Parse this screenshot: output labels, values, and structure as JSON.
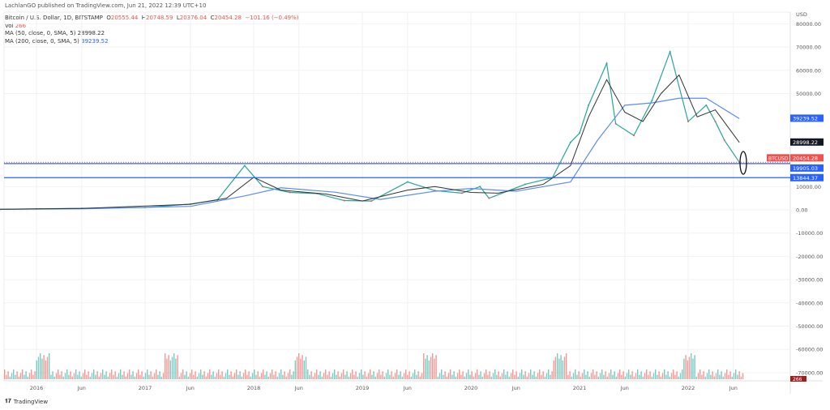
{
  "published": "LachlanGO published on TradingView.com, Jun 21, 2022 12:39 UTC+10",
  "legend": {
    "symbol": "Bitcoin / U.S. Dollar, 1D, BITSTAMP",
    "o_label": "O",
    "o": "20555.44",
    "h_label": "H",
    "h": "20748.59",
    "l_label": "L",
    "l": "20376.04",
    "c_label": "C",
    "c": "20454.28",
    "change": "−101.16 (−0.49%)",
    "vol_label": "Vol",
    "vol": "266",
    "ma50_label": "MA (50, close, 0, SMA, 5)",
    "ma50": "28998.22",
    "ma200_label": "MA (200, close, 0, SMA, 5)",
    "ma200": "39239.52"
  },
  "brand": "TradingView",
  "chart_data": {
    "type": "line",
    "currency": "USD",
    "y_ticks": [
      "80000.00",
      "70000.00",
      "60000.00",
      "50000.00",
      "10000.00",
      "0.00",
      "-10000.00",
      "-20000.00",
      "-30000.00",
      "-40000.00",
      "-50000.00",
      "-60000.00",
      "-70000.00"
    ],
    "x_ticks": [
      "2016",
      "Jun",
      "2017",
      "Jun",
      "2018",
      "Jun",
      "2019",
      "Jun",
      "2020",
      "Jun",
      "2021",
      "Jun",
      "2022",
      "Jun"
    ],
    "x_tick_dates": [
      "2016-01",
      "2016-06",
      "2017-01",
      "2017-06",
      "2018-01",
      "2018-06",
      "2019-01",
      "2019-06",
      "2020-01",
      "2020-06",
      "2021-01",
      "2021-06",
      "2022-01",
      "2022-06"
    ],
    "ylim": [
      -72000,
      82000
    ],
    "grid": true,
    "price": {
      "x": [
        "2015-09",
        "2016-01",
        "2016-06",
        "2017-01",
        "2017-06",
        "2017-09",
        "2017-12",
        "2018-02",
        "2018-05",
        "2018-08",
        "2018-11",
        "2019-02",
        "2019-06",
        "2019-09",
        "2019-12",
        "2020-02",
        "2020-03",
        "2020-07",
        "2020-10",
        "2020-12",
        "2021-01",
        "2021-02",
        "2021-04",
        "2021-05",
        "2021-07",
        "2021-09",
        "2021-11",
        "2022-01",
        "2022-03",
        "2022-04",
        "2022-05",
        "2022-06-21"
      ],
      "y": [
        230,
        430,
        670,
        1000,
        2500,
        4300,
        19000,
        10000,
        7500,
        7000,
        4000,
        3800,
        12000,
        8300,
        7200,
        10000,
        5000,
        11000,
        13800,
        29000,
        33000,
        45000,
        63000,
        37000,
        32000,
        47000,
        68000,
        38000,
        45000,
        38000,
        30000,
        20454
      ]
    },
    "ma50": {
      "x": [
        "2015-09",
        "2016-06",
        "2017-06",
        "2017-10",
        "2018-01",
        "2018-04",
        "2018-09",
        "2019-01",
        "2019-06",
        "2019-09",
        "2020-01",
        "2020-04",
        "2020-09",
        "2020-12",
        "2021-02",
        "2021-04",
        "2021-06",
        "2021-08",
        "2021-10",
        "2021-12",
        "2022-02",
        "2022-04",
        "2022-06-21"
      ],
      "y": [
        250,
        600,
        2400,
        5000,
        14000,
        8500,
        6800,
        3800,
        8500,
        10000,
        7500,
        7200,
        11000,
        19000,
        40000,
        56000,
        42000,
        38000,
        50000,
        58000,
        40000,
        43000,
        28998
      ]
    },
    "ma200": {
      "x": [
        "2015-09",
        "2016-06",
        "2017-06",
        "2017-12",
        "2018-04",
        "2018-10",
        "2019-03",
        "2019-09",
        "2020-01",
        "2020-06",
        "2020-12",
        "2021-03",
        "2021-06",
        "2021-09",
        "2021-12",
        "2022-03",
        "2022-06-21"
      ],
      "y": [
        240,
        450,
        1500,
        6000,
        9500,
        7600,
        4500,
        8000,
        9200,
        8000,
        12000,
        30000,
        45000,
        46000,
        48000,
        48000,
        39239
      ]
    },
    "levels": [
      {
        "value": 19905.03,
        "label": "19905.03",
        "color": "#2962ff"
      },
      {
        "value": 13844.37,
        "label": "13844.37",
        "color": "#2962ff"
      }
    ],
    "last_price": {
      "value": 20454.28,
      "label": "20454.28",
      "tag": "BTCUSD",
      "color": "#ef5350"
    },
    "ma50_tag": {
      "value": 28998.22,
      "label": "28998.22",
      "color": "#131722"
    },
    "ma200_tag": {
      "value": 39239.52,
      "label": "39239.52",
      "color": "#2962ff"
    },
    "volume_tag": "266",
    "colors": {
      "up": "#26a69a",
      "down": "#ef5350",
      "ma50": "#333333",
      "ma200": "#5b8def"
    }
  }
}
